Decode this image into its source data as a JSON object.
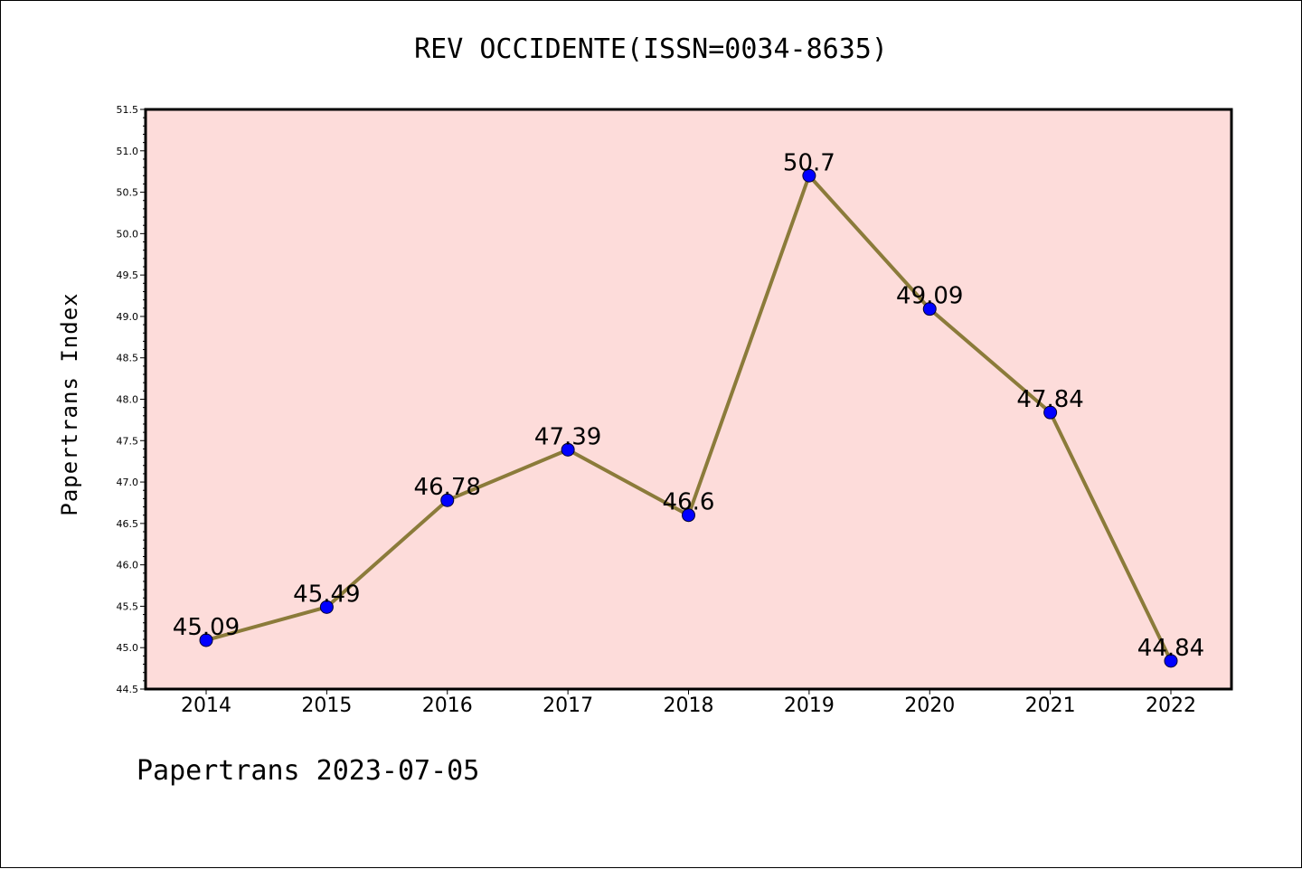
{
  "title": "REV OCCIDENTE(ISSN=0034-8635)",
  "footer": "Papertrans 2023-07-05",
  "chart_data": {
    "type": "line",
    "title": "REV OCCIDENTE(ISSN=0034-8635)",
    "xlabel": "",
    "ylabel": "Papertrans Index",
    "categories": [
      "2014",
      "2015",
      "2016",
      "2017",
      "2018",
      "2019",
      "2020",
      "2021",
      "2022"
    ],
    "values": [
      45.09,
      45.49,
      46.78,
      47.39,
      46.6,
      50.7,
      49.09,
      47.84,
      44.84
    ],
    "data_labels": [
      "45.09",
      "45.49",
      "46.78",
      "47.39",
      "46.6",
      "50.7",
      "49.09",
      "47.84",
      "44.84"
    ],
    "ylim": [
      44.5,
      51.5
    ],
    "yticks": [
      "44.5",
      "45.0",
      "45.5",
      "46.0",
      "46.5",
      "47.0",
      "47.5",
      "48.0",
      "48.5",
      "49.0",
      "49.5",
      "50.0",
      "50.5",
      "51.0",
      "51.5"
    ],
    "grid": false,
    "colors": {
      "plot_background": "#fddcda",
      "line": "#8b7b3a",
      "marker": "#0000ff"
    }
  }
}
